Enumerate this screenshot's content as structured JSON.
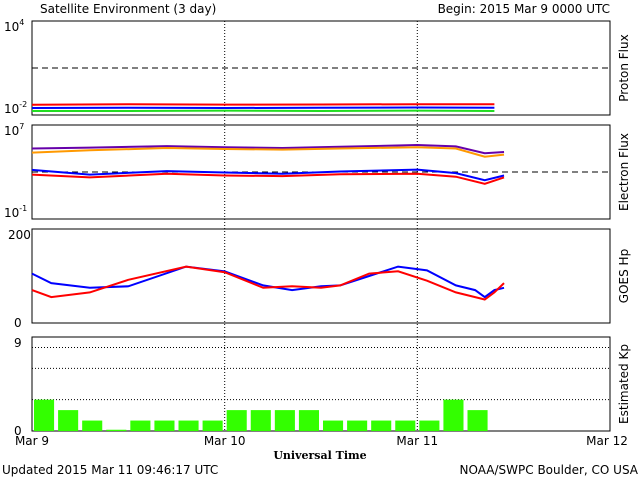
{
  "header": {
    "title": "Satellite Environment (3 day)",
    "begin": "Begin:  2015 Mar 9 0000 UTC"
  },
  "footer": {
    "updated": "Updated 2015 Mar 11 09:46:17 UTC",
    "credit": "NOAA/SWPC Boulder, CO USA"
  },
  "x_axis": {
    "label": "Universal Time",
    "ticks": [
      "Mar 9",
      "Mar 10",
      "Mar 11",
      "Mar 12"
    ]
  },
  "colors": {
    "red": "#ff0000",
    "blue": "#0000ff",
    "green": "#22dd22",
    "orange": "#ff9900",
    "purple": "#6600aa",
    "bar": "#33ff00"
  },
  "chart_data": [
    {
      "type": "line",
      "ylabel": "Proton Flux",
      "scale": "log",
      "ylim": [
        0.01,
        10000
      ],
      "y_tick_labels": {
        "top": "10",
        "top_exp": "4",
        "bottom": "10",
        "bottom_exp": "-2"
      },
      "threshold": 10,
      "x_days": [
        0,
        1.5,
        2.4
      ],
      "series": [
        {
          "color": "red",
          "x": [
            0,
            0.5,
            1.0,
            1.5,
            2.0,
            2.4
          ],
          "y": [
            0.045,
            0.048,
            0.046,
            0.047,
            0.049,
            0.048
          ]
        },
        {
          "color": "blue",
          "x": [
            0,
            0.5,
            1.0,
            1.5,
            2.0,
            2.4
          ],
          "y": [
            0.028,
            0.029,
            0.028,
            0.029,
            0.03,
            0.029
          ]
        },
        {
          "color": "green",
          "x": [
            0,
            0.5,
            1.0,
            1.5,
            2.0,
            2.4
          ],
          "y": [
            0.018,
            0.018,
            0.019,
            0.018,
            0.019,
            0.018
          ]
        }
      ]
    },
    {
      "type": "line",
      "ylabel": "Electron Flux",
      "scale": "log",
      "ylim": [
        0.1,
        10000000
      ],
      "y_tick_labels": {
        "top": "10",
        "top_exp": "7",
        "bottom": "10",
        "bottom_exp": "-1"
      },
      "threshold": 1000,
      "series": [
        {
          "color": "purple",
          "x": [
            0,
            0.3,
            0.7,
            1.0,
            1.3,
            1.6,
            2.0,
            2.2,
            2.35,
            2.45
          ],
          "y": [
            100000,
            120000,
            160000,
            130000,
            110000,
            140000,
            200000,
            150000,
            40000,
            50000
          ]
        },
        {
          "color": "orange",
          "x": [
            0,
            0.3,
            0.7,
            1.0,
            1.3,
            1.6,
            2.0,
            2.2,
            2.35,
            2.45
          ],
          "y": [
            45000,
            70000,
            110000,
            90000,
            80000,
            100000,
            130000,
            100000,
            20000,
            30000
          ]
        },
        {
          "color": "blue",
          "x": [
            0,
            0.3,
            0.7,
            1.0,
            1.3,
            1.6,
            2.0,
            2.2,
            2.35,
            2.45
          ],
          "y": [
            1500,
            600,
            1200,
            900,
            700,
            1100,
            1600,
            800,
            200,
            500
          ]
        },
        {
          "color": "red",
          "x": [
            0,
            0.3,
            0.7,
            1.0,
            1.3,
            1.6,
            2.0,
            2.2,
            2.35,
            2.45
          ],
          "y": [
            600,
            350,
            700,
            500,
            450,
            650,
            700,
            400,
            100,
            350
          ]
        }
      ]
    },
    {
      "type": "line",
      "ylabel": "GOES Hp",
      "scale": "linear",
      "ylim": [
        0,
        200
      ],
      "y_tick_labels": {
        "top": "200",
        "bottom": "0"
      },
      "series": [
        {
          "color": "blue",
          "x": [
            0,
            0.1,
            0.3,
            0.5,
            0.8,
            1.0,
            1.2,
            1.35,
            1.5,
            1.6,
            1.75,
            1.9,
            2.05,
            2.2,
            2.3,
            2.35,
            2.4,
            2.45
          ],
          "y": [
            105,
            85,
            75,
            78,
            120,
            110,
            80,
            70,
            78,
            80,
            100,
            120,
            112,
            80,
            70,
            55,
            70,
            75
          ]
        },
        {
          "color": "red",
          "x": [
            0,
            0.1,
            0.3,
            0.5,
            0.8,
            1.0,
            1.2,
            1.35,
            1.5,
            1.6,
            1.75,
            1.9,
            2.05,
            2.2,
            2.3,
            2.35,
            2.4,
            2.45
          ],
          "y": [
            70,
            55,
            65,
            92,
            120,
            108,
            75,
            78,
            75,
            80,
            105,
            110,
            90,
            65,
            55,
            50,
            65,
            85
          ]
        }
      ]
    },
    {
      "type": "bar",
      "ylabel": "Estimated Kp",
      "ylim": [
        0,
        9
      ],
      "y_tick_labels": {
        "top": "9",
        "bottom": "0"
      },
      "bar_hours": 3,
      "values": [
        3,
        2,
        1,
        0,
        1,
        1,
        1,
        1,
        2,
        2,
        2,
        2,
        1,
        1,
        1,
        1,
        1,
        3,
        2
      ]
    }
  ]
}
